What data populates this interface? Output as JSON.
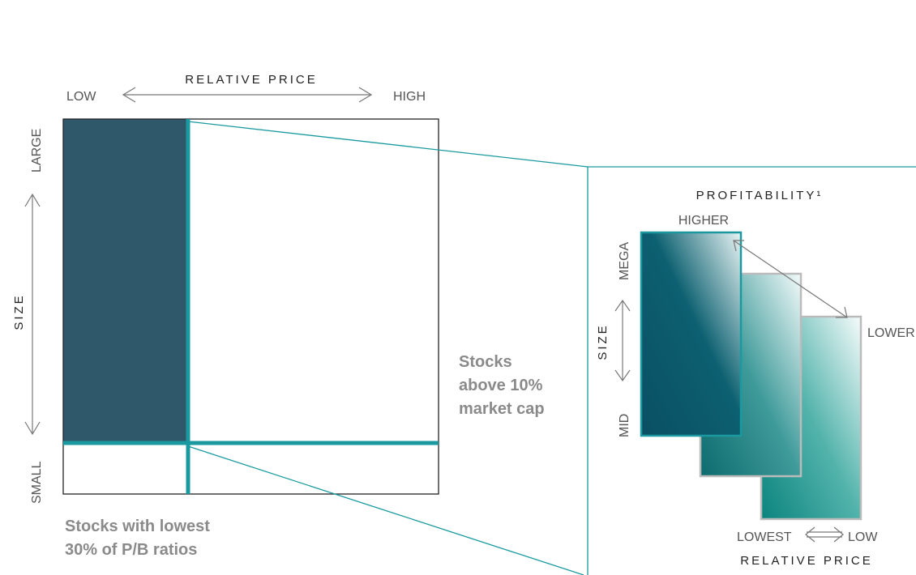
{
  "colors": {
    "dark_slate": "#30586b",
    "teal": "#1a9aa0",
    "teal_dark": "#0f6f73",
    "navy_teal": "#0b4f63",
    "frame": "#222222",
    "callout_text": "#8a8a8a",
    "label_text": "#555555",
    "grey_border": "#bbbbbb"
  },
  "left_grid": {
    "axis_title": "RELATIVE PRICE",
    "x_low": "LOW",
    "x_high": "HIGH",
    "size_title": "SIZE",
    "y_large": "LARGE",
    "y_small": "SMALL"
  },
  "callouts": {
    "cap_line1": "Stocks",
    "cap_line2": "above 10%",
    "cap_line3": "market cap",
    "pb_line1": "Stocks with lowest",
    "pb_line2": "30% of P/B ratios"
  },
  "right_panel": {
    "profitability_title": "PROFITABILITY¹",
    "higher": "HIGHER",
    "lower": "LOWER",
    "size_title": "SIZE",
    "mega": "MEGA",
    "mid": "MID",
    "lowest": "LOWEST",
    "low": "LOW",
    "price_title": "RELATIVE PRICE"
  },
  "icons": [
    "double-arrow-icon"
  ]
}
